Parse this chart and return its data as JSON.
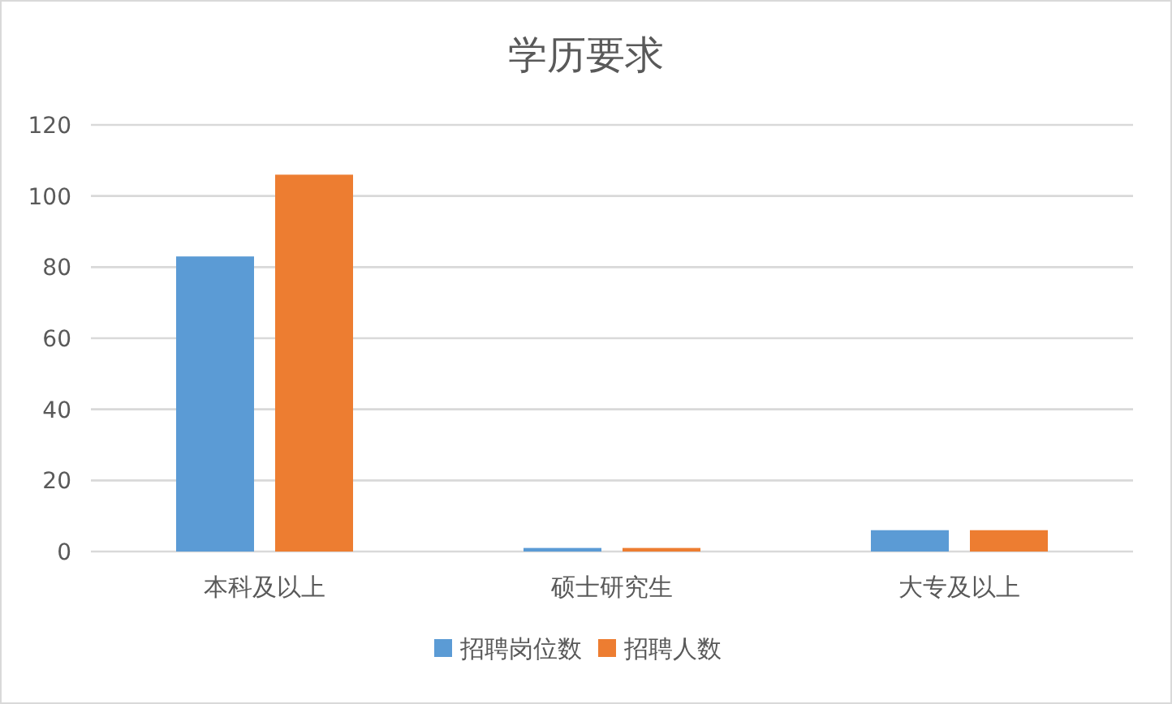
{
  "chart_data": {
    "type": "bar",
    "title": "学历要求",
    "categories": [
      "本科及以上",
      "硕士研究生",
      "大专及以上"
    ],
    "series": [
      {
        "name": "招聘岗位数",
        "color": "#5b9bd5",
        "values": [
          83,
          1,
          6
        ]
      },
      {
        "name": "招聘人数",
        "color": "#ed7d31",
        "values": [
          106,
          1,
          6
        ]
      }
    ],
    "ylim": [
      0,
      120
    ],
    "yticks": [
      0,
      20,
      40,
      60,
      80,
      100,
      120
    ],
    "grid": "y",
    "legend": "bottom"
  }
}
